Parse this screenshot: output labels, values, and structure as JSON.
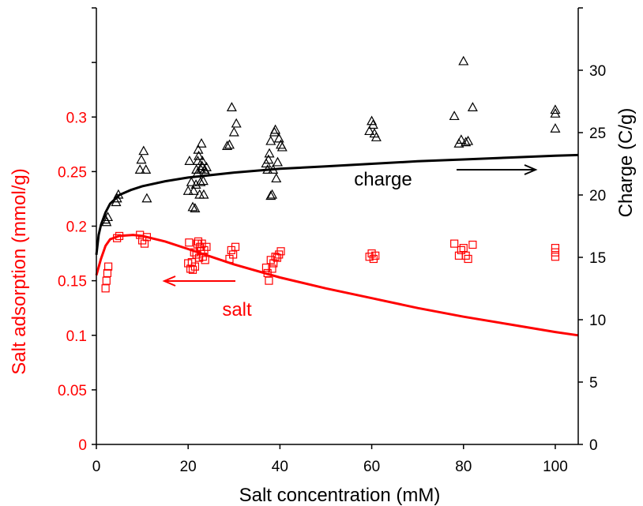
{
  "chart_data": {
    "type": "scatter",
    "xlabel": "Salt concentration (mM)",
    "ylabel_left": "Salt adsorption  (mmol/g)",
    "ylabel_right": "Charge (C/g)",
    "xlim": [
      0,
      105
    ],
    "ylim_left": [
      0,
      0.4
    ],
    "ylim_right": [
      0,
      35
    ],
    "x_ticks": [
      "0",
      "20",
      "40",
      "60",
      "80",
      "100"
    ],
    "left_ticks": [
      "0",
      "0.05",
      "0.1",
      "0.15",
      "0.2",
      "0.25",
      "0.3"
    ],
    "right_ticks": [
      "0",
      "5",
      "10",
      "15",
      "20",
      "25",
      "30"
    ],
    "colors": {
      "salt": "#ff0000",
      "charge": "#000000"
    },
    "annotations": {
      "charge": "charge",
      "salt": "salt"
    },
    "series": [
      {
        "axis": "right",
        "marker": "triangle",
        "color": "#000000",
        "points": [
          [
            2,
            18.0
          ],
          [
            2.2,
            17.8
          ],
          [
            2.5,
            18.2
          ],
          [
            4.5,
            19.7
          ],
          [
            4.8,
            20.0
          ],
          [
            4.3,
            19.4
          ],
          [
            9.5,
            22.0
          ],
          [
            9.8,
            22.8
          ],
          [
            10.3,
            23.5
          ],
          [
            10.8,
            22.0
          ],
          [
            11,
            19.7
          ],
          [
            20,
            20.3
          ],
          [
            20.3,
            22.7
          ],
          [
            20.7,
            21.0
          ],
          [
            21,
            19.0
          ],
          [
            21.2,
            20.3
          ],
          [
            21.5,
            18.9
          ],
          [
            21.7,
            20.8
          ],
          [
            21.8,
            22.0
          ],
          [
            22,
            21.7
          ],
          [
            22.1,
            22.7
          ],
          [
            22.2,
            23.6
          ],
          [
            22.3,
            23.1
          ],
          [
            22.5,
            20.0
          ],
          [
            22.7,
            21.0
          ],
          [
            22.8,
            22.0
          ],
          [
            22.9,
            24.1
          ],
          [
            23,
            22.3
          ],
          [
            23.1,
            22.7
          ],
          [
            23.3,
            21.1
          ],
          [
            23.4,
            20.0
          ],
          [
            23.6,
            22.0
          ],
          [
            23.8,
            21.8
          ],
          [
            24,
            22.2
          ],
          [
            28.5,
            23.9
          ],
          [
            29,
            24.0
          ],
          [
            29.5,
            27.0
          ],
          [
            30,
            25.0
          ],
          [
            30.5,
            25.7
          ],
          [
            37,
            22.5
          ],
          [
            37.3,
            22.0
          ],
          [
            37.5,
            22.8
          ],
          [
            37.7,
            23.3
          ],
          [
            38,
            24.3
          ],
          [
            38,
            19.9
          ],
          [
            38.3,
            20.0
          ],
          [
            38.5,
            22.0
          ],
          [
            38.8,
            25.0
          ],
          [
            39,
            25.2
          ],
          [
            39.2,
            21.3
          ],
          [
            39.5,
            22.6
          ],
          [
            39.8,
            24.5
          ],
          [
            40.2,
            24.0
          ],
          [
            40.5,
            23.8
          ],
          [
            59.5,
            25.1
          ],
          [
            60,
            25.9
          ],
          [
            60.3,
            25.6
          ],
          [
            60.6,
            24.9
          ],
          [
            61,
            24.6
          ],
          [
            78,
            26.3
          ],
          [
            79,
            24.1
          ],
          [
            79.5,
            24.4
          ],
          [
            80,
            30.7
          ],
          [
            80.5,
            24.2
          ],
          [
            81,
            24.3
          ],
          [
            82,
            27.0
          ],
          [
            100,
            25.3
          ],
          [
            100,
            26.8
          ],
          [
            100,
            26.5
          ]
        ]
      },
      {
        "axis": "left",
        "marker": "square",
        "color": "#ff0000",
        "points": [
          [
            2,
            0.143
          ],
          [
            2.2,
            0.15
          ],
          [
            2.4,
            0.157
          ],
          [
            2.6,
            0.163
          ],
          [
            4.5,
            0.189
          ],
          [
            5,
            0.191
          ],
          [
            9.5,
            0.192
          ],
          [
            10,
            0.187
          ],
          [
            10.5,
            0.184
          ],
          [
            11,
            0.19
          ],
          [
            20,
            0.166
          ],
          [
            20.2,
            0.185
          ],
          [
            20.5,
            0.161
          ],
          [
            20.8,
            0.167
          ],
          [
            21,
            0.16
          ],
          [
            21.3,
            0.176
          ],
          [
            21.5,
            0.163
          ],
          [
            21.8,
            0.174
          ],
          [
            22,
            0.184
          ],
          [
            22.2,
            0.186
          ],
          [
            22.4,
            0.171
          ],
          [
            22.6,
            0.181
          ],
          [
            22.8,
            0.177
          ],
          [
            23,
            0.184
          ],
          [
            23.2,
            0.172
          ],
          [
            23.5,
            0.178
          ],
          [
            23.7,
            0.169
          ],
          [
            24,
            0.181
          ],
          [
            29,
            0.17
          ],
          [
            29.4,
            0.178
          ],
          [
            29.8,
            0.174
          ],
          [
            30.3,
            0.181
          ],
          [
            37,
            0.162
          ],
          [
            37.3,
            0.157
          ],
          [
            37.6,
            0.15
          ],
          [
            38,
            0.169
          ],
          [
            38.3,
            0.161
          ],
          [
            38.6,
            0.166
          ],
          [
            39,
            0.172
          ],
          [
            39.4,
            0.171
          ],
          [
            39.8,
            0.174
          ],
          [
            40.2,
            0.177
          ],
          [
            59.5,
            0.172
          ],
          [
            60,
            0.175
          ],
          [
            60.4,
            0.17
          ],
          [
            60.8,
            0.173
          ],
          [
            78,
            0.184
          ],
          [
            79,
            0.173
          ],
          [
            79.5,
            0.178
          ],
          [
            80,
            0.18
          ],
          [
            80.5,
            0.173
          ],
          [
            81,
            0.17
          ],
          [
            82,
            0.183
          ],
          [
            100,
            0.172
          ],
          [
            100,
            0.176
          ],
          [
            100,
            0.18
          ]
        ]
      },
      {
        "axis": "right",
        "type": "line",
        "color": "#000000",
        "points": [
          [
            0,
            15.2
          ],
          [
            0.5,
            16.8
          ],
          [
            1,
            17.6
          ],
          [
            2,
            18.6
          ],
          [
            3,
            19.3
          ],
          [
            5,
            20.0
          ],
          [
            7.5,
            20.4
          ],
          [
            10,
            20.7
          ],
          [
            15,
            21.1
          ],
          [
            20,
            21.4
          ],
          [
            30,
            21.8
          ],
          [
            40,
            22.1
          ],
          [
            50,
            22.3
          ],
          [
            60,
            22.5
          ],
          [
            70,
            22.7
          ],
          [
            80,
            22.85
          ],
          [
            90,
            23.0
          ],
          [
            100,
            23.15
          ],
          [
            105,
            23.2
          ]
        ]
      },
      {
        "axis": "left",
        "type": "line",
        "color": "#ff0000",
        "points": [
          [
            0,
            0.155
          ],
          [
            1,
            0.17
          ],
          [
            2,
            0.182
          ],
          [
            3,
            0.188
          ],
          [
            5,
            0.191
          ],
          [
            8,
            0.192
          ],
          [
            10,
            0.191
          ],
          [
            15,
            0.186
          ],
          [
            20,
            0.179
          ],
          [
            25,
            0.172
          ],
          [
            30,
            0.165
          ],
          [
            40,
            0.153
          ],
          [
            50,
            0.143
          ],
          [
            60,
            0.134
          ],
          [
            70,
            0.125
          ],
          [
            80,
            0.117
          ],
          [
            90,
            0.11
          ],
          [
            100,
            0.103
          ],
          [
            105,
            0.1
          ]
        ]
      }
    ]
  }
}
